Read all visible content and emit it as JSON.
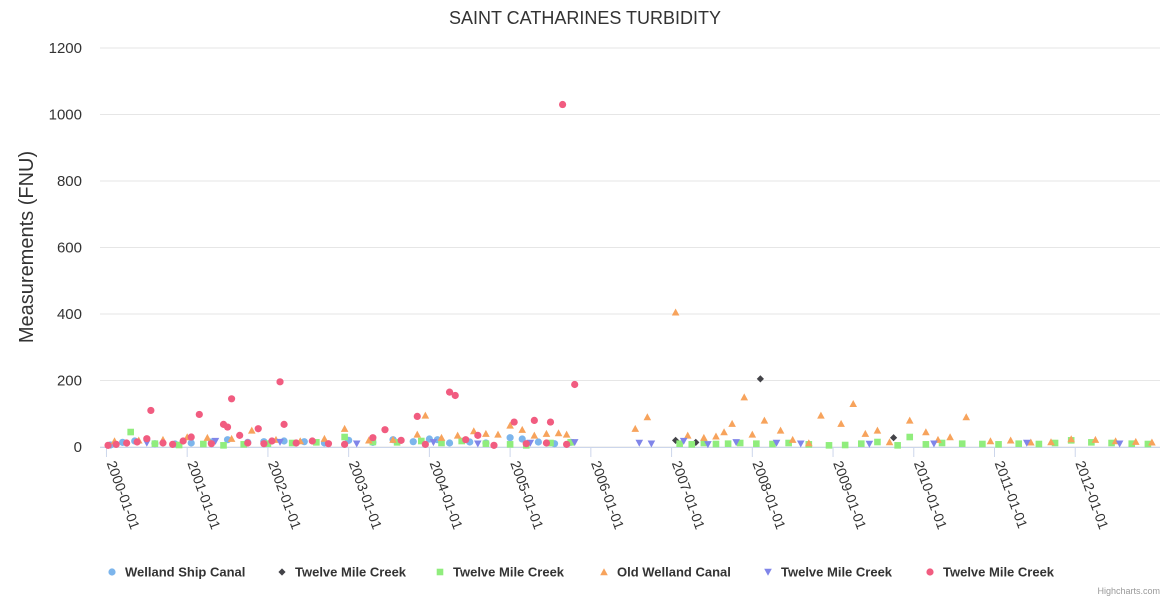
{
  "chart_data": {
    "type": "scatter",
    "title": "SAINT CATHARINES TURBIDITY",
    "ylabel": "Measurements (FNU)",
    "xlabel": "",
    "ylim": [
      0,
      1200
    ],
    "yticks": [
      "0",
      "200",
      "400",
      "600",
      "800",
      "1000",
      "1200"
    ],
    "xrange": [
      1999.92,
      2013.05
    ],
    "xticks": [
      {
        "label": "2000-01-01",
        "x": 2000.0
      },
      {
        "label": "2001-01-01",
        "x": 2001.0
      },
      {
        "label": "2002-01-01",
        "x": 2002.0
      },
      {
        "label": "2003-01-01",
        "x": 2003.0
      },
      {
        "label": "2004-01-01",
        "x": 2004.0
      },
      {
        "label": "2005-01-01",
        "x": 2005.0
      },
      {
        "label": "2006-01-01",
        "x": 2006.0
      },
      {
        "label": "2007-01-01",
        "x": 2007.0
      },
      {
        "label": "2008-01-01",
        "x": 2008.0
      },
      {
        "label": "2009-01-01",
        "x": 2009.0
      },
      {
        "label": "2010-01-01",
        "x": 2010.0
      },
      {
        "label": "2011-01-01",
        "x": 2011.0
      },
      {
        "label": "2012-01-01",
        "x": 2012.0
      }
    ],
    "series": [
      {
        "name": "Welland Ship Canal",
        "color": "#7cb5ec",
        "marker": "circle",
        "points": [
          [
            2000.05,
            6
          ],
          [
            2000.2,
            14
          ],
          [
            2000.35,
            18
          ],
          [
            2000.6,
            10
          ],
          [
            2000.85,
            9
          ],
          [
            2001.05,
            12
          ],
          [
            2001.3,
            15
          ],
          [
            2001.5,
            22
          ],
          [
            2001.75,
            14
          ],
          [
            2001.95,
            16
          ],
          [
            2002.2,
            18
          ],
          [
            2002.45,
            16
          ],
          [
            2002.7,
            12
          ],
          [
            2003.0,
            20
          ],
          [
            2003.3,
            14
          ],
          [
            2003.55,
            22
          ],
          [
            2003.8,
            16
          ],
          [
            2004.0,
            24
          ],
          [
            2004.1,
            22
          ],
          [
            2004.25,
            12
          ],
          [
            2004.5,
            15
          ],
          [
            2004.7,
            12
          ],
          [
            2005.0,
            28
          ],
          [
            2005.15,
            24
          ],
          [
            2005.35,
            15
          ],
          [
            2005.55,
            10
          ],
          [
            2005.75,
            14
          ]
        ]
      },
      {
        "name": "Twelve Mile Creek",
        "color": "#434348",
        "marker": "diamond",
        "points": [
          [
            2007.05,
            20
          ],
          [
            2007.3,
            14
          ],
          [
            2008.1,
            205
          ],
          [
            2009.75,
            28
          ]
        ]
      },
      {
        "name": "Twelve Mile Creek",
        "color": "#90ed7d",
        "marker": "square",
        "points": [
          [
            2000.3,
            45
          ],
          [
            2000.6,
            10
          ],
          [
            2000.9,
            6
          ],
          [
            2001.2,
            9
          ],
          [
            2001.45,
            5
          ],
          [
            2001.7,
            8
          ],
          [
            2002.0,
            10
          ],
          [
            2002.3,
            12
          ],
          [
            2002.6,
            14
          ],
          [
            2002.95,
            30
          ],
          [
            2003.3,
            15
          ],
          [
            2003.6,
            14
          ],
          [
            2003.9,
            18
          ],
          [
            2004.15,
            12
          ],
          [
            2004.4,
            18
          ],
          [
            2004.7,
            10
          ],
          [
            2005.0,
            8
          ],
          [
            2005.2,
            5
          ],
          [
            2005.5,
            12
          ],
          [
            2005.75,
            14
          ],
          [
            2007.1,
            10
          ],
          [
            2007.25,
            8
          ],
          [
            2007.4,
            12
          ],
          [
            2007.55,
            9
          ],
          [
            2007.7,
            10
          ],
          [
            2007.85,
            12
          ],
          [
            2008.05,
            10
          ],
          [
            2008.25,
            9
          ],
          [
            2008.45,
            12
          ],
          [
            2008.7,
            8
          ],
          [
            2008.95,
            5
          ],
          [
            2009.15,
            6
          ],
          [
            2009.35,
            10
          ],
          [
            2009.55,
            15
          ],
          [
            2009.8,
            5
          ],
          [
            2009.95,
            30
          ],
          [
            2010.15,
            8
          ],
          [
            2010.35,
            12
          ],
          [
            2010.6,
            10
          ],
          [
            2010.85,
            9
          ],
          [
            2011.05,
            8
          ],
          [
            2011.3,
            10
          ],
          [
            2011.55,
            9
          ],
          [
            2011.75,
            12
          ],
          [
            2011.95,
            20
          ],
          [
            2012.2,
            14
          ],
          [
            2012.45,
            12
          ],
          [
            2012.7,
            10
          ],
          [
            2012.9,
            9
          ]
        ]
      },
      {
        "name": "Old Welland Canal",
        "color": "#f7a35c",
        "marker": "triangle",
        "points": [
          [
            2000.1,
            18
          ],
          [
            2000.4,
            20
          ],
          [
            2000.7,
            22
          ],
          [
            2001.0,
            30
          ],
          [
            2001.25,
            28
          ],
          [
            2001.55,
            25
          ],
          [
            2001.8,
            50
          ],
          [
            2002.1,
            22
          ],
          [
            2002.4,
            18
          ],
          [
            2002.7,
            25
          ],
          [
            2002.95,
            55
          ],
          [
            2003.25,
            20
          ],
          [
            2003.55,
            22
          ],
          [
            2003.85,
            38
          ],
          [
            2003.95,
            95
          ],
          [
            2004.15,
            28
          ],
          [
            2004.35,
            35
          ],
          [
            2004.55,
            48
          ],
          [
            2004.7,
            40
          ],
          [
            2004.85,
            38
          ],
          [
            2005.0,
            65
          ],
          [
            2005.15,
            52
          ],
          [
            2005.3,
            35
          ],
          [
            2005.45,
            40
          ],
          [
            2005.6,
            42
          ],
          [
            2005.7,
            38
          ],
          [
            2006.55,
            55
          ],
          [
            2006.7,
            90
          ],
          [
            2007.05,
            405
          ],
          [
            2007.2,
            35
          ],
          [
            2007.4,
            28
          ],
          [
            2007.55,
            32
          ],
          [
            2007.65,
            45
          ],
          [
            2007.75,
            70
          ],
          [
            2007.9,
            150
          ],
          [
            2008.0,
            38
          ],
          [
            2008.15,
            80
          ],
          [
            2008.35,
            50
          ],
          [
            2008.5,
            22
          ],
          [
            2008.7,
            12
          ],
          [
            2008.85,
            95
          ],
          [
            2009.1,
            70
          ],
          [
            2009.25,
            130
          ],
          [
            2009.4,
            40
          ],
          [
            2009.55,
            50
          ],
          [
            2009.7,
            15
          ],
          [
            2009.95,
            80
          ],
          [
            2010.15,
            45
          ],
          [
            2010.3,
            22
          ],
          [
            2010.45,
            30
          ],
          [
            2010.65,
            90
          ],
          [
            2010.95,
            18
          ],
          [
            2011.2,
            20
          ],
          [
            2011.45,
            14
          ],
          [
            2011.7,
            15
          ],
          [
            2011.95,
            24
          ],
          [
            2012.25,
            22
          ],
          [
            2012.5,
            18
          ],
          [
            2012.75,
            16
          ],
          [
            2012.95,
            14
          ]
        ]
      },
      {
        "name": "Twelve Mile Creek",
        "color": "#8085e9",
        "marker": "triangle-down",
        "points": [
          [
            2000.5,
            12
          ],
          [
            2001.35,
            18
          ],
          [
            2002.15,
            15
          ],
          [
            2003.1,
            10
          ],
          [
            2004.05,
            14
          ],
          [
            2004.6,
            10
          ],
          [
            2005.25,
            12
          ],
          [
            2005.8,
            14
          ],
          [
            2006.6,
            12
          ],
          [
            2006.75,
            10
          ],
          [
            2007.15,
            18
          ],
          [
            2007.45,
            8
          ],
          [
            2007.8,
            14
          ],
          [
            2008.3,
            12
          ],
          [
            2008.6,
            10
          ],
          [
            2009.45,
            9
          ],
          [
            2010.25,
            10
          ],
          [
            2011.4,
            12
          ],
          [
            2012.55,
            10
          ]
        ]
      },
      {
        "name": "Twelve Mile Creek",
        "color": "#f15c80",
        "marker": "circle",
        "points": [
          [
            2000.02,
            5
          ],
          [
            2000.12,
            8
          ],
          [
            2000.25,
            12
          ],
          [
            2000.38,
            15
          ],
          [
            2000.5,
            25
          ],
          [
            2000.55,
            110
          ],
          [
            2000.7,
            12
          ],
          [
            2000.82,
            8
          ],
          [
            2000.95,
            18
          ],
          [
            2001.05,
            30
          ],
          [
            2001.15,
            98
          ],
          [
            2001.3,
            10
          ],
          [
            2001.45,
            68
          ],
          [
            2001.5,
            60
          ],
          [
            2001.55,
            145
          ],
          [
            2001.65,
            35
          ],
          [
            2001.75,
            12
          ],
          [
            2001.88,
            55
          ],
          [
            2001.95,
            10
          ],
          [
            2002.05,
            18
          ],
          [
            2002.15,
            196
          ],
          [
            2002.2,
            68
          ],
          [
            2002.35,
            12
          ],
          [
            2002.55,
            18
          ],
          [
            2002.75,
            10
          ],
          [
            2002.95,
            8
          ],
          [
            2003.3,
            28
          ],
          [
            2003.45,
            52
          ],
          [
            2003.65,
            20
          ],
          [
            2003.85,
            92
          ],
          [
            2003.95,
            8
          ],
          [
            2004.25,
            165
          ],
          [
            2004.32,
            155
          ],
          [
            2004.45,
            22
          ],
          [
            2004.6,
            35
          ],
          [
            2004.8,
            5
          ],
          [
            2005.05,
            75
          ],
          [
            2005.3,
            80
          ],
          [
            2005.5,
            75
          ],
          [
            2005.65,
            1030
          ],
          [
            2005.8,
            188
          ],
          [
            2005.7,
            8
          ],
          [
            2005.45,
            12
          ],
          [
            2005.2,
            10
          ]
        ]
      }
    ]
  },
  "credits": "Highcharts.com"
}
